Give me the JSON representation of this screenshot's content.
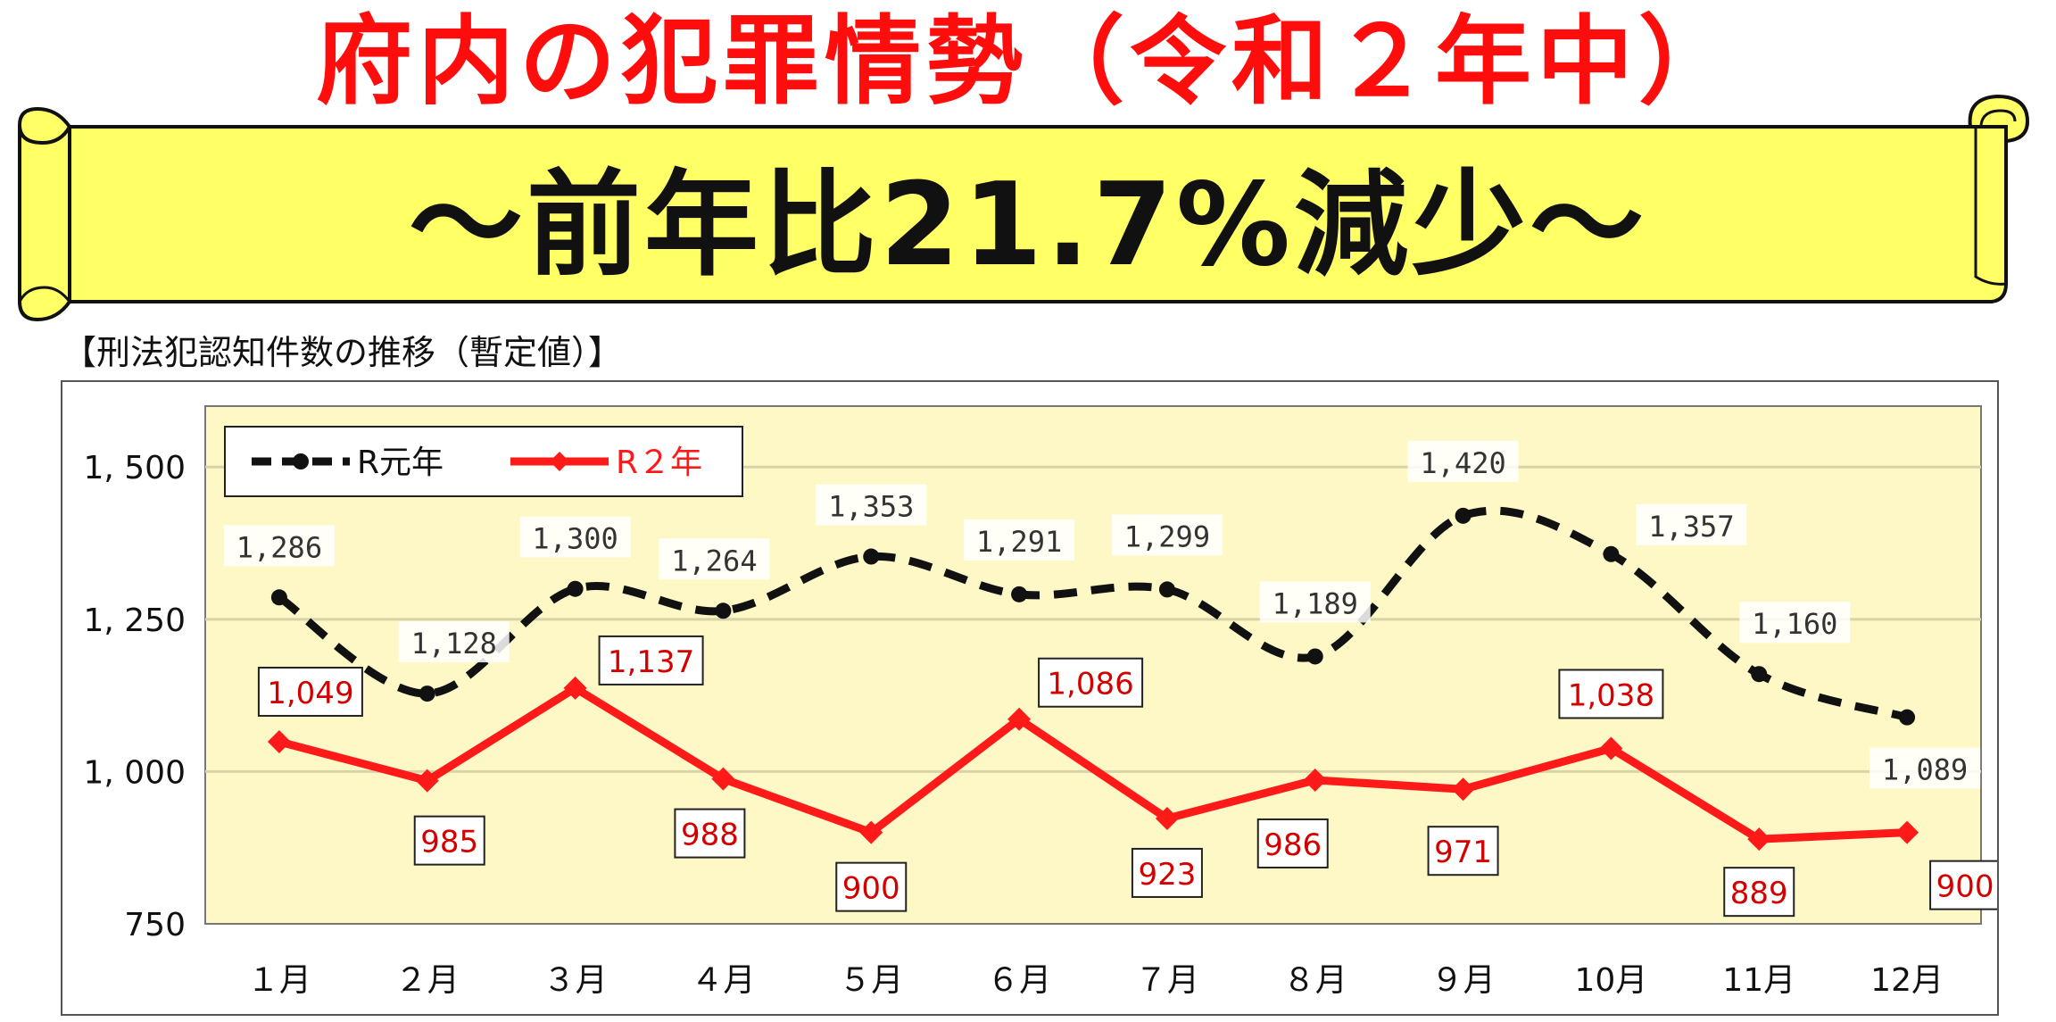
{
  "header": {
    "title": "府内の犯罪情勢（令和２年中）",
    "banner": "～前年比21.7%減少～",
    "subtitle": "【刑法犯認知件数の推移（暫定値）】"
  },
  "colors": {
    "title_red": "#ff0d0d",
    "banner_fill": "#ffff66",
    "plot_bg": "#fdf8c6",
    "series_r1": "#111111",
    "series_r2": "#ff1a1a",
    "label_red": "#d40000"
  },
  "chart_data": {
    "type": "line",
    "title": "",
    "xlabel": "",
    "ylabel": "",
    "categories": [
      "１月",
      "２月",
      "３月",
      "４月",
      "５月",
      "６月",
      "７月",
      "８月",
      "９月",
      "10月",
      "11月",
      "12月"
    ],
    "ylim": [
      750,
      1600
    ],
    "y_ticks": [
      750,
      1000,
      1250,
      1500
    ],
    "y_tick_labels": [
      "750",
      "1, 000",
      "1, 250",
      "1, 500"
    ],
    "grid": true,
    "legend_position": "top-left",
    "series": [
      {
        "name": "R元年",
        "style": "dashed",
        "smooth": true,
        "values": [
          1286,
          1128,
          1300,
          1264,
          1353,
          1291,
          1299,
          1189,
          1420,
          1357,
          1160,
          1089
        ],
        "labels": [
          "1,286",
          "1,128",
          "1,300",
          "1,264",
          "1,353",
          "1,291",
          "1,299",
          "1,189",
          "1,420",
          "1,357",
          "1,160",
          "1,089"
        ]
      },
      {
        "name": "R２年",
        "style": "solid",
        "smooth": false,
        "values": [
          1049,
          985,
          1137,
          988,
          900,
          1086,
          923,
          986,
          971,
          1038,
          889,
          900
        ],
        "labels": [
          "1,049",
          "985",
          "1,137",
          "988",
          "900",
          "1,086",
          "923",
          "986",
          "971",
          "1,038",
          "889",
          "900"
        ]
      }
    ]
  }
}
